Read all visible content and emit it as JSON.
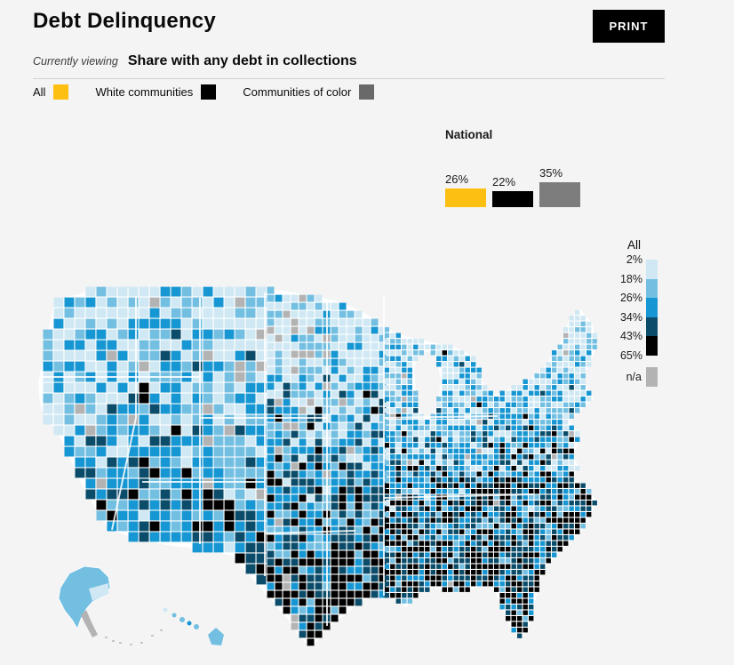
{
  "page": {
    "background": "#f4f4f4"
  },
  "header": {
    "title": "Debt Delinquency",
    "print_label": "PRINT"
  },
  "subheader": {
    "prefix": "Currently viewing",
    "metric": "Share with any debt in collections"
  },
  "group_legend": {
    "items": [
      {
        "label": "All",
        "color": "#fdbf11"
      },
      {
        "label": "White communities",
        "color": "#000000"
      },
      {
        "label": "Communities of color",
        "color": "#696969"
      }
    ]
  },
  "chart_data": [
    {
      "type": "bar",
      "title": "National",
      "categories": [
        "All",
        "White communities",
        "Communities of color"
      ],
      "values": [
        26,
        22,
        35
      ],
      "labels": [
        "26%",
        "22%",
        "35%"
      ],
      "colors": [
        "#fdbf11",
        "#000000",
        "#7d7d7d"
      ],
      "ylim": [
        0,
        35
      ],
      "legend_position": "none",
      "grid": false
    },
    {
      "type": "choropleth-legend",
      "title": "All",
      "tick_labels": [
        "2%",
        "18%",
        "26%",
        "34%",
        "43%",
        "65%"
      ],
      "bins": [
        [
          2,
          18
        ],
        [
          18,
          26
        ],
        [
          26,
          34
        ],
        [
          34,
          43
        ],
        [
          43,
          65
        ]
      ],
      "colors": [
        "#cfe8f3",
        "#73bfe2",
        "#1696d2",
        "#0a4c6a",
        "#000000"
      ],
      "na_label": "n/a",
      "na_color": "#b3b3b3"
    }
  ],
  "map": {
    "name": "us-county-choropleth",
    "metric": "Share with any debt in collections",
    "palette": [
      "#cfe8f3",
      "#73bfe2",
      "#1696d2",
      "#0a4c6a",
      "#000000"
    ],
    "na_color": "#b3b3b3",
    "county_border_color": "#ffffff",
    "pattern": "lighter blues across northern states, medium blues in the west, dark blue and black concentration across the South, Texas and the Southeast, gray n/a counties scattered in the plains"
  }
}
